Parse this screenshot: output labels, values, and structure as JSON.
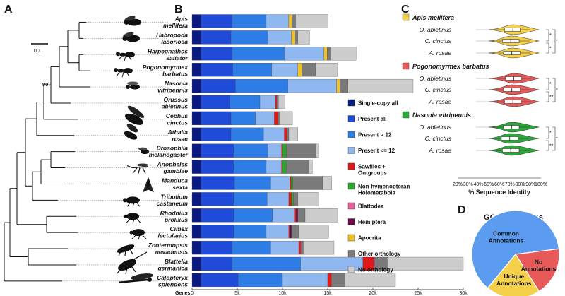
{
  "panels": {
    "a": "A",
    "b": "B",
    "c": "C",
    "d": "D"
  },
  "tree": {
    "scale_label": "0.1",
    "bootstrap_label": "90"
  },
  "chart_data": [
    {
      "type": "bar",
      "stacked": true,
      "orientation": "horizontal",
      "xlabel": "Genes:",
      "xlim": [
        0,
        30000
      ],
      "x_ticks": [
        0,
        5000,
        10000,
        15000,
        20000,
        25000,
        30000
      ],
      "x_tick_labels": [
        "0",
        "5k",
        "10k",
        "15k",
        "20k",
        "25k",
        "30k"
      ],
      "categories": [
        [
          "Apis",
          "mellifera"
        ],
        [
          "Habropoda",
          "laboriosa"
        ],
        [
          "Harpegnathos",
          "saltator"
        ],
        [
          "Pogonomyrmex",
          "barbatus"
        ],
        [
          "Nasonia",
          "vitripennis"
        ],
        [
          "Orussus",
          "abietinus"
        ],
        [
          "Cephus",
          "cinctus"
        ],
        [
          "Athalia",
          "rosae"
        ],
        [
          "Drosophila",
          "melanogaster"
        ],
        [
          "Anopheles",
          "gambiae"
        ],
        [
          "Manduca",
          "sexta"
        ],
        [
          "Tribolium",
          "castaneum"
        ],
        [
          "Rhodnius",
          "prolixus"
        ],
        [
          "Cimex",
          "lectularius"
        ],
        [
          "Zootermopsis",
          "nevadensis"
        ],
        [
          "Blattella",
          "germanica"
        ],
        [
          "Calopteryx",
          "splendens"
        ]
      ],
      "legend": [
        "Single-copy all",
        "Present all",
        "Present > 12",
        "Present <= 12",
        "Sawflies + Outgroups",
        "Non-hymenopteran Holometabola",
        "Blattodea",
        "Hemiptera",
        "Apocrita",
        "Other orthology",
        "No orthology"
      ],
      "colors": [
        "#0a1a80",
        "#1f4bd8",
        "#2e7de6",
        "#8fb8f0",
        "#e01818",
        "#2aa82a",
        "#e8609a",
        "#6a0a4a",
        "#f2c020",
        "#7a7a7a",
        "#cccccc"
      ],
      "series_values": [
        [
          1000,
          1000,
          1000,
          1000,
          1000,
          1000,
          1000,
          1000,
          1000,
          1000,
          1000,
          1000,
          1000,
          1000,
          1000,
          1000,
          1000
        ],
        [
          3400,
          3300,
          3400,
          3500,
          3800,
          3200,
          3300,
          3300,
          3600,
          3600,
          3700,
          3600,
          3600,
          3600,
          3400,
          3400,
          4100
        ],
        [
          3800,
          4100,
          5800,
          4300,
          5800,
          3300,
          2700,
          3600,
          3800,
          3600,
          4000,
          3700,
          4300,
          3600,
          4300,
          7600,
          4900
        ],
        [
          2500,
          2600,
          4400,
          2900,
          5400,
          1700,
          2100,
          2300,
          1500,
          1700,
          2100,
          2400,
          2400,
          2500,
          3100,
          6900,
          5000
        ],
        [
          0,
          0,
          0,
          0,
          0,
          150,
          400,
          300,
          120,
          100,
          150,
          300,
          200,
          100,
          200,
          1200,
          400
        ],
        [
          0,
          0,
          0,
          0,
          0,
          0,
          0,
          0,
          400,
          400,
          200,
          200,
          0,
          0,
          0,
          0,
          0
        ],
        [
          0,
          0,
          0,
          0,
          0,
          0,
          0,
          0,
          0,
          0,
          0,
          0,
          0,
          0,
          100,
          100,
          0
        ],
        [
          0,
          0,
          0,
          0,
          0,
          0,
          0,
          0,
          0,
          0,
          0,
          0,
          200,
          200,
          0,
          0,
          0
        ],
        [
          350,
          350,
          350,
          450,
          350,
          0,
          0,
          0,
          0,
          0,
          0,
          0,
          0,
          0,
          0,
          0,
          0
        ],
        [
          400,
          350,
          400,
          1500,
          900,
          200,
          200,
          200,
          3300,
          2500,
          3300,
          500,
          800,
          800,
          200,
          1400,
          1500
        ],
        [
          3600,
          1300,
          2800,
          2400,
          7200,
          700,
          1400,
          1000,
          200,
          400,
          1000,
          2300,
          3600,
          3300,
          3400,
          8400,
          5600
        ]
      ]
    },
    {
      "type": "violin",
      "xlabel": "% Sequence Identity",
      "xlim": [
        20,
        100
      ],
      "x_ticks": [
        20,
        30,
        40,
        50,
        60,
        70,
        80,
        90,
        100
      ],
      "x_tick_labels": [
        "20%",
        "30%",
        "40%",
        "50%",
        "60%",
        "70%",
        "80%",
        "90%",
        "100%"
      ],
      "groups": [
        {
          "title": "Apis mellifera",
          "color": "#f5d04a",
          "rows": [
            {
              "label": "O. abietinus",
              "median": 73,
              "q1": 65,
              "q3": 80,
              "min": 50,
              "max": 98
            },
            {
              "label": "C. cinctus",
              "median": 71,
              "q1": 63,
              "q3": 79,
              "min": 50,
              "max": 98
            },
            {
              "label": "A. rosae",
              "median": 72,
              "q1": 64,
              "q3": 80,
              "min": 50,
              "max": 98
            }
          ],
          "significance": [
            "*",
            "*"
          ]
        },
        {
          "title": "Pogonomyrmex barbatus",
          "color": "#e85a5a",
          "rows": [
            {
              "label": "O. abietinus",
              "median": 74,
              "q1": 66,
              "q3": 81,
              "min": 50,
              "max": 98
            },
            {
              "label": "C. cinctus",
              "median": 72,
              "q1": 64,
              "q3": 80,
              "min": 50,
              "max": 98
            },
            {
              "label": "A. rosae",
              "median": 73,
              "q1": 65,
              "q3": 81,
              "min": 50,
              "max": 98
            }
          ],
          "significance": [
            "*",
            "**"
          ]
        },
        {
          "title": "Nasonia vitripennis",
          "color": "#2aa83a",
          "rows": [
            {
              "label": "O. abietinus",
              "median": 72,
              "q1": 64,
              "q3": 79,
              "min": 50,
              "max": 98
            },
            {
              "label": "C. cinctus",
              "median": 70,
              "q1": 62,
              "q3": 78,
              "min": 50,
              "max": 98
            },
            {
              "label": "A. rosae",
              "median": 71,
              "q1": 63,
              "q3": 79,
              "min": 50,
              "max": 98
            }
          ],
          "significance": [
            "*",
            "**"
          ]
        }
      ]
    },
    {
      "type": "pie",
      "title": "GO Annotations",
      "labels": [
        [
          "Common",
          "Annotations"
        ],
        [
          "No",
          "Annotations"
        ],
        [
          "Unique",
          "Annotations"
        ]
      ],
      "values": [
        62,
        18,
        20
      ],
      "colors": [
        "#5b9bf0",
        "#e85a5a",
        "#f5d04a"
      ]
    }
  ]
}
